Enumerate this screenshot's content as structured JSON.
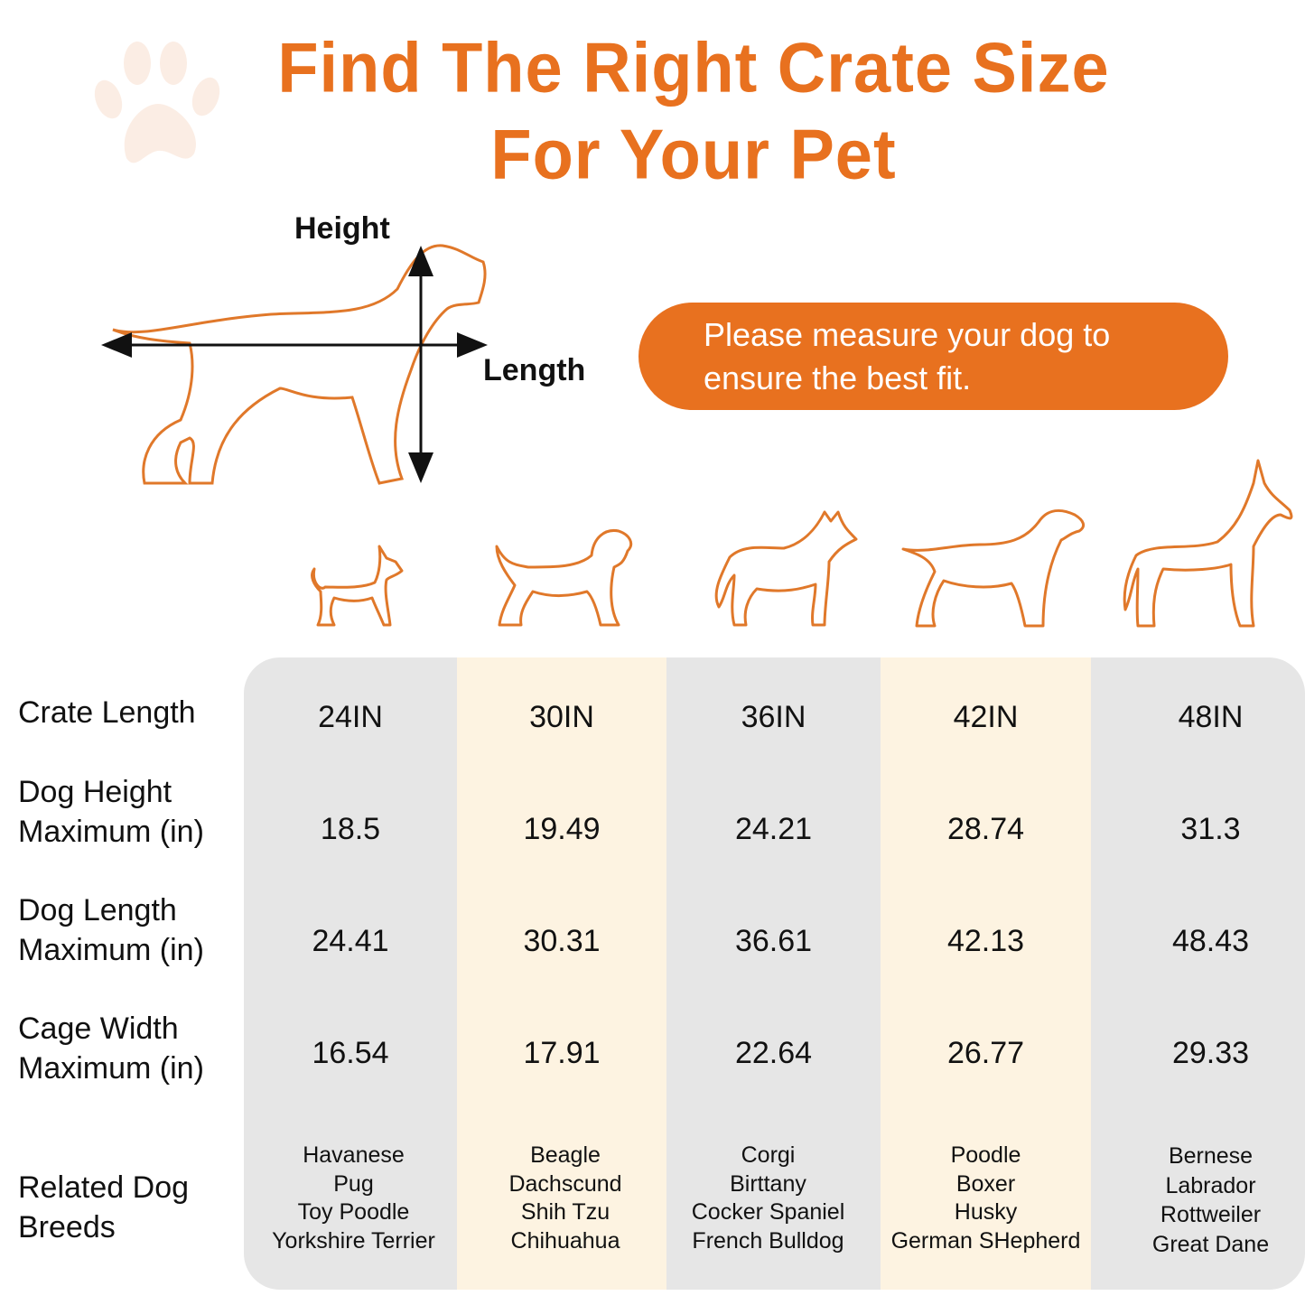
{
  "title": {
    "line1": "Find The Right Crate Size",
    "line2": "For Your Pet"
  },
  "diagram": {
    "height_label": "Height",
    "length_label": "Length"
  },
  "notice": {
    "line1": "Please measure your dog to",
    "line2": "ensure the best fit."
  },
  "colors": {
    "accent": "#E8711F",
    "grey_column": "#E6E6E6",
    "cream_column": "#FDF3E1",
    "paw_watermark": "#FBEDE4"
  },
  "row_labels": {
    "crate_length": "Crate Length",
    "dog_height": [
      "Dog Height",
      "Maximum (in)"
    ],
    "dog_length": [
      "Dog Length",
      "Maximum (in)"
    ],
    "cage_width": [
      "Cage Width",
      "Maximum (in)"
    ],
    "breeds": [
      "Related Dog",
      "Breeds"
    ]
  },
  "columns": [
    {
      "crate_length": "24IN",
      "dog_height": "18.5",
      "dog_length": "24.41",
      "cage_width": "16.54",
      "breeds": [
        "Havanese",
        "Pug",
        "Toy Poodle",
        "Yorkshire Terrier"
      ],
      "icon": "chihuahua-icon"
    },
    {
      "crate_length": "30IN",
      "dog_height": "19.49",
      "dog_length": "30.31",
      "cage_width": "17.91",
      "breeds": [
        "Beagle",
        "Dachscund",
        "Shih Tzu",
        "Chihuahua"
      ],
      "icon": "beagle-icon"
    },
    {
      "crate_length": "36IN",
      "dog_height": "24.21",
      "dog_length": "36.61",
      "cage_width": "22.64",
      "breeds": [
        "Corgi",
        "Birttany",
        "Cocker Spaniel",
        "French Bulldog"
      ],
      "icon": "husky-icon"
    },
    {
      "crate_length": "42IN",
      "dog_height": "28.74",
      "dog_length": "42.13",
      "cage_width": "26.77",
      "breeds": [
        "Poodle",
        "Boxer",
        "Husky",
        "German SHepherd"
      ],
      "icon": "labrador-icon"
    },
    {
      "crate_length": "48IN",
      "dog_height": "31.3",
      "dog_length": "48.43",
      "cage_width": "29.33",
      "breeds": [
        "Bernese",
        "Labrador",
        "Rottweiler",
        "Great Dane"
      ],
      "icon": "great-dane-icon"
    }
  ]
}
